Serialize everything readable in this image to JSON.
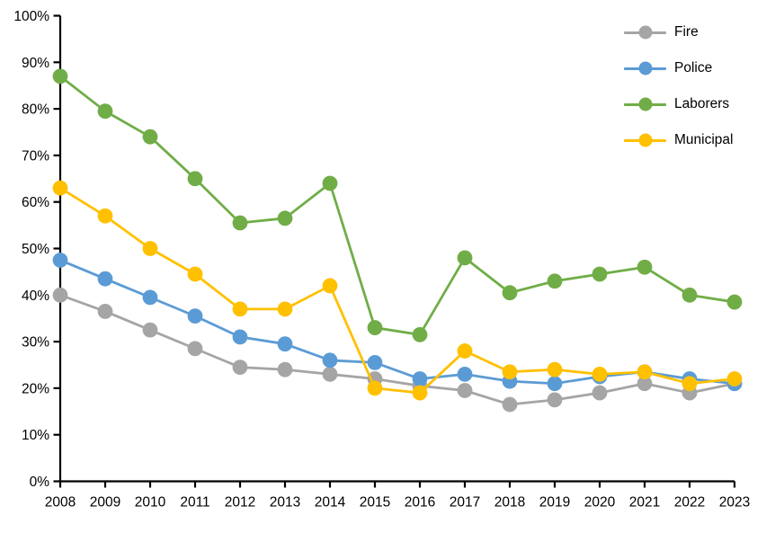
{
  "chart_data": {
    "type": "line",
    "title": "",
    "xlabel": "",
    "ylabel": "",
    "categories": [
      "2008",
      "2009",
      "2010",
      "2011",
      "2012",
      "2013",
      "2014",
      "2015",
      "2016",
      "2017",
      "2018",
      "2019",
      "2020",
      "2021",
      "2022",
      "2023"
    ],
    "series": [
      {
        "name": "Fire",
        "color": "#a5a5a5",
        "values": [
          40,
          36.5,
          32.5,
          28.5,
          24.5,
          24,
          23,
          22,
          20.5,
          19.5,
          16.5,
          17.5,
          19,
          21,
          19,
          21
        ]
      },
      {
        "name": "Police",
        "color": "#5b9bd5",
        "values": [
          47.5,
          43.5,
          39.5,
          35.5,
          31,
          29.5,
          26,
          25.5,
          22,
          23,
          21.5,
          21,
          22.5,
          23.5,
          22,
          21
        ]
      },
      {
        "name": "Laborers",
        "color": "#70ad47",
        "values": [
          87,
          79.5,
          74,
          65,
          55.5,
          56.5,
          64,
          33,
          31.5,
          48,
          40.5,
          43,
          44.5,
          46,
          40,
          38.5
        ]
      },
      {
        "name": "Municipal",
        "color": "#ffc000",
        "values": [
          63,
          57,
          50,
          44.5,
          37,
          37,
          42,
          20,
          19,
          28,
          23.5,
          24,
          23,
          23.5,
          21,
          22
        ]
      }
    ],
    "ylim": [
      0,
      100
    ],
    "y_tick_step": 10,
    "y_tick_labels": [
      "0%",
      "10%",
      "20%",
      "30%",
      "40%",
      "50%",
      "60%",
      "70%",
      "80%",
      "90%",
      "100%"
    ],
    "legend": [
      "Fire",
      "Police",
      "Laborers",
      "Municipal"
    ],
    "legend_position": "top-right",
    "grid": false,
    "axis_color": "#000000",
    "background_color": "#ffffff"
  }
}
